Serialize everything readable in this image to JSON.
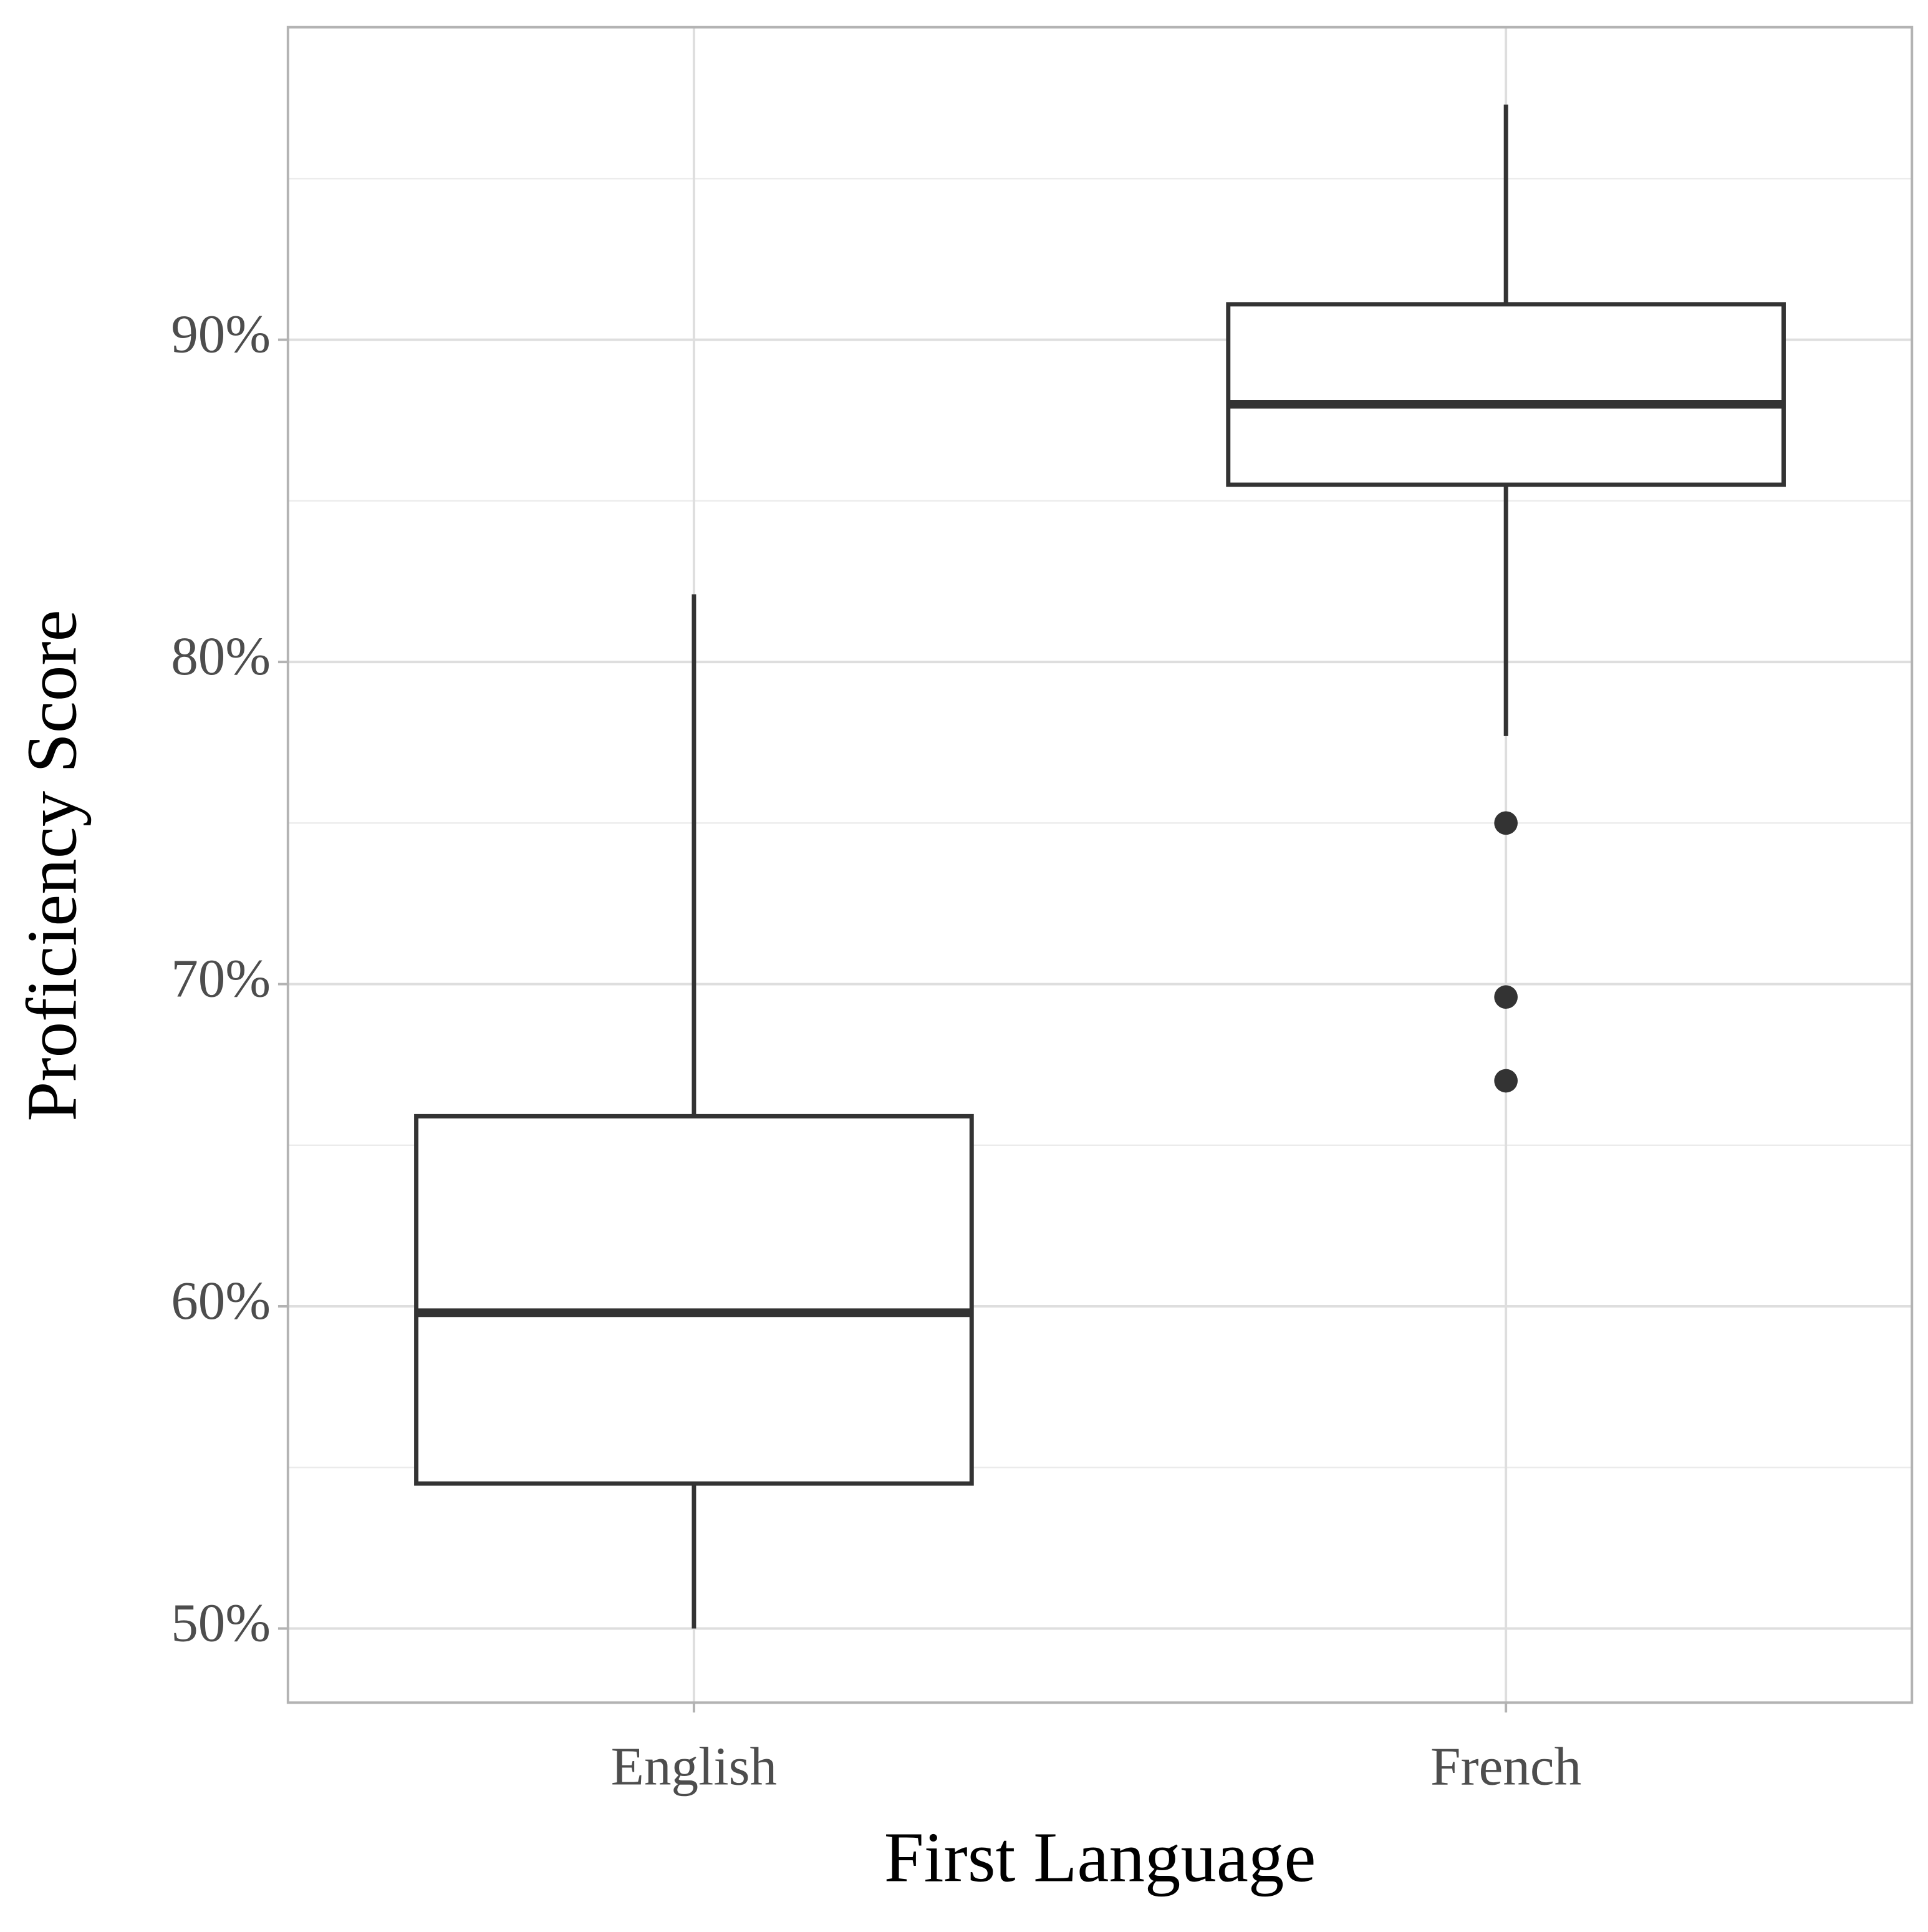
{
  "chart_data": {
    "type": "box",
    "x_label": "First Language",
    "y_label": "Proficiency Score",
    "categories": [
      "English",
      "French"
    ],
    "stats": [
      {
        "whisker_low": 50,
        "q1": 54.5,
        "median": 59.8,
        "q3": 65.9,
        "whisker_high": 82.1
      },
      {
        "whisker_low": 77.7,
        "q1": 85.5,
        "median": 88.0,
        "q3": 91.1,
        "whisker_high": 97.3,
        "outliers": [
          75.0,
          69.6,
          67.0
        ]
      }
    ],
    "color": "#333333",
    "ylim": [
      47.7,
      99.7
    ],
    "yticks": [
      {
        "value": 50,
        "label": "50%"
      },
      {
        "value": 60,
        "label": "60%"
      },
      {
        "value": 70,
        "label": "70%"
      },
      {
        "value": 80,
        "label": "80%"
      },
      {
        "value": 90,
        "label": "90%"
      }
    ],
    "minor_yticks": [
      55,
      65,
      75,
      85,
      95
    ],
    "grid": true
  }
}
